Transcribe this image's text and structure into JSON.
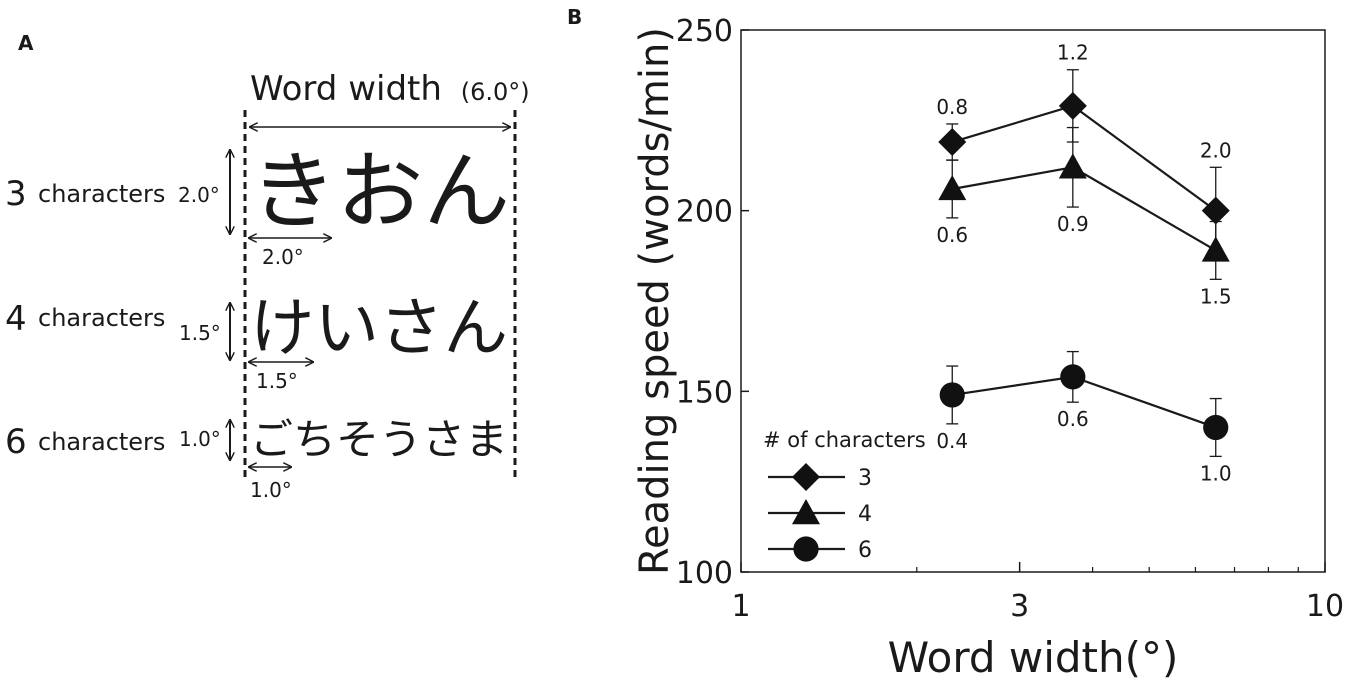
{
  "panel_a": {
    "label": "A",
    "word_width_label": "Word width",
    "word_width_value": "(6.0°)",
    "rows": [
      {
        "count": "3",
        "unit": "characters",
        "height": "2.0°",
        "width": "2.0°",
        "word": "きおん"
      },
      {
        "count": "4",
        "unit": "characters",
        "height": "1.5°",
        "width": "1.5°",
        "word": "けいさん"
      },
      {
        "count": "6",
        "unit": "characters",
        "height": "1.0°",
        "width": "1.0°",
        "word": "ごちそうさま"
      }
    ]
  },
  "panel_b": {
    "label": "B"
  },
  "chart_data": {
    "type": "line",
    "xlabel": "Word width(°)",
    "ylabel": "Reading speed (words/min)",
    "x_scale": "log",
    "xlim": [
      1,
      10
    ],
    "ylim": [
      100,
      250
    ],
    "x_ticks": [
      1,
      3,
      10
    ],
    "x_tick_labels": [
      "1",
      "3",
      "10"
    ],
    "y_ticks": [
      100,
      150,
      200,
      250
    ],
    "y_tick_labels": [
      "100",
      "150",
      "200",
      "250"
    ],
    "grid": false,
    "legend": {
      "title": "# of characters",
      "position": "bottom-left"
    },
    "series": [
      {
        "name": "3",
        "marker": "diamond",
        "x": [
          2.3,
          3.7,
          6.5
        ],
        "y": [
          219,
          229,
          200
        ],
        "error": [
          5,
          10,
          12
        ],
        "labels": [
          "0.8",
          "1.2",
          "2.0"
        ],
        "label_position": "above"
      },
      {
        "name": "4",
        "marker": "triangle",
        "x": [
          2.3,
          3.7,
          6.5
        ],
        "y": [
          206,
          212,
          189
        ],
        "error": [
          8,
          11,
          8
        ],
        "labels": [
          "0.6",
          "0.9",
          "1.5"
        ],
        "label_position": "below"
      },
      {
        "name": "6",
        "marker": "circle",
        "x": [
          2.3,
          3.7,
          6.5
        ],
        "y": [
          149,
          154,
          140
        ],
        "error": [
          8,
          7,
          8
        ],
        "labels": [
          "0.4",
          "0.6",
          "1.0"
        ],
        "label_position": "below"
      }
    ]
  }
}
